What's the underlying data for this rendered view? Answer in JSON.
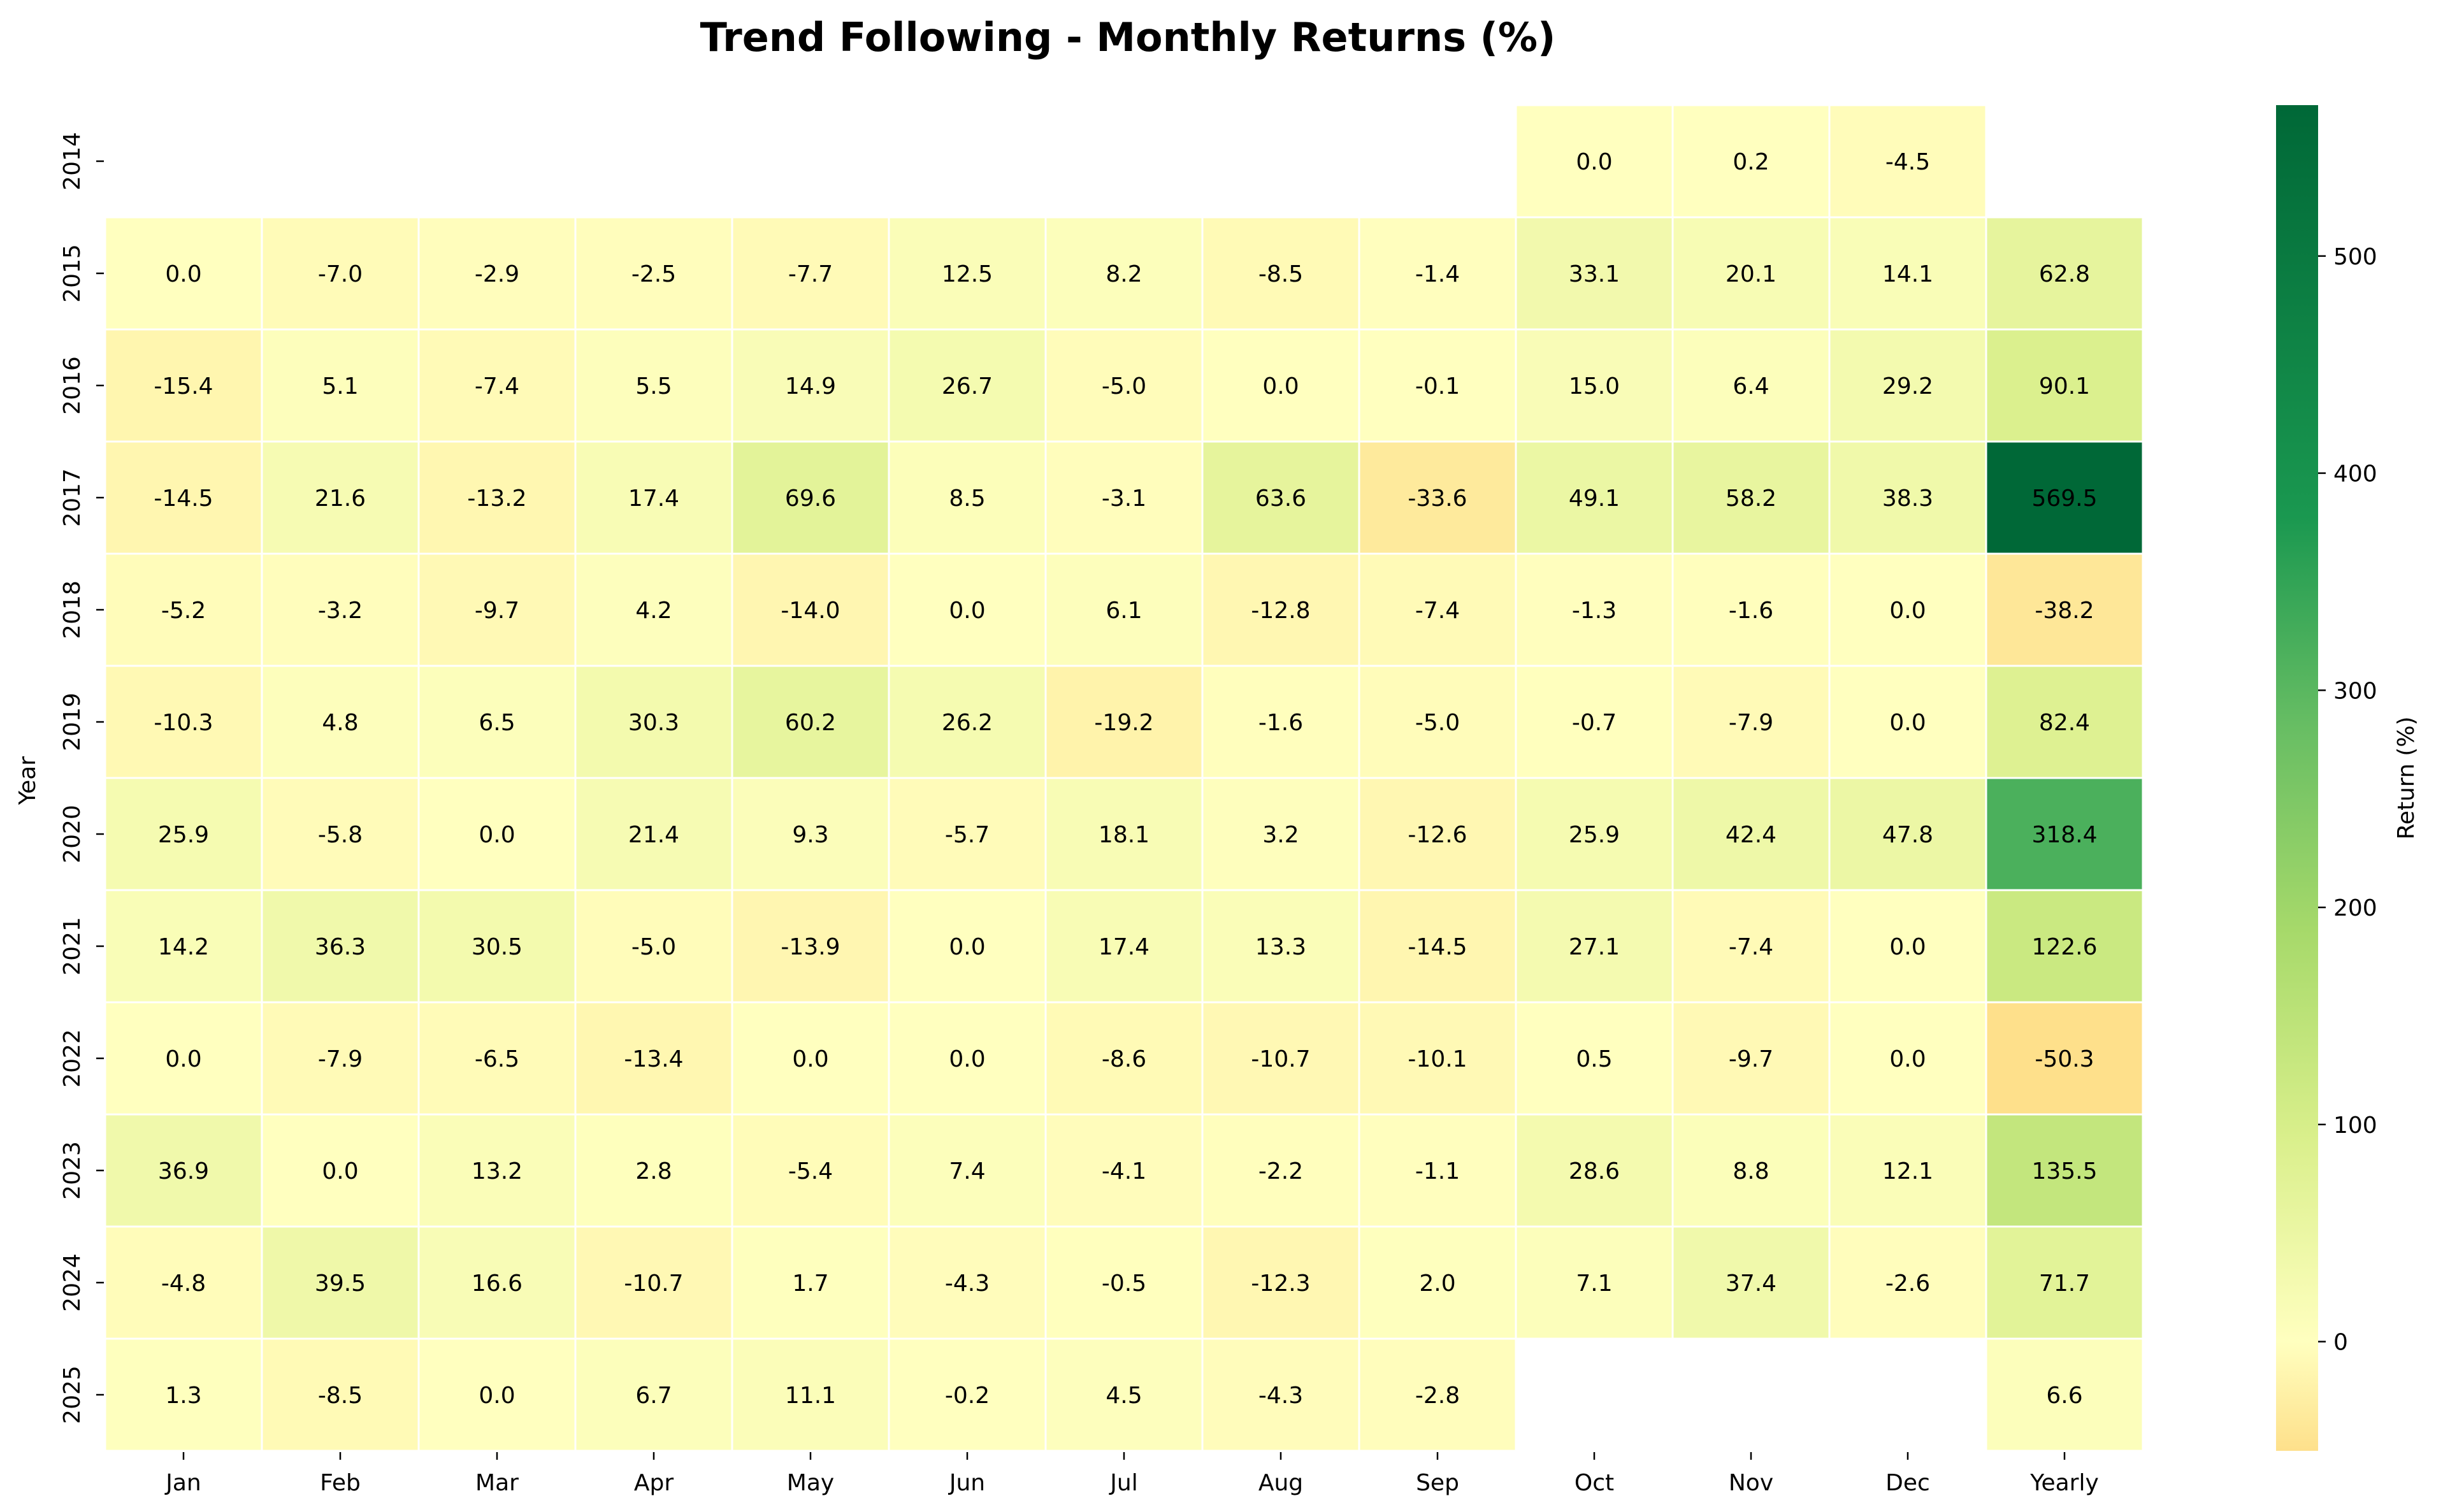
{
  "chart_data": {
    "type": "heatmap",
    "title": "Trend Following - Monthly Returns (%)",
    "xlabel": "",
    "ylabel": "Year",
    "x_categories": [
      "Jan",
      "Feb",
      "Mar",
      "Apr",
      "May",
      "Jun",
      "Jul",
      "Aug",
      "Sep",
      "Oct",
      "Nov",
      "Dec",
      "Yearly"
    ],
    "y_categories": [
      "2014",
      "2015",
      "2016",
      "2017",
      "2018",
      "2019",
      "2020",
      "2021",
      "2022",
      "2023",
      "2024",
      "2025"
    ],
    "values": [
      [
        null,
        null,
        null,
        null,
        null,
        null,
        null,
        null,
        null,
        0.0,
        0.2,
        -4.5,
        null
      ],
      [
        0.0,
        -7.0,
        -2.9,
        -2.5,
        -7.7,
        12.5,
        8.2,
        -8.5,
        -1.4,
        33.1,
        20.1,
        14.1,
        62.8
      ],
      [
        -15.4,
        5.1,
        -7.4,
        5.5,
        14.9,
        26.7,
        -5.0,
        0.0,
        -0.1,
        15.0,
        6.4,
        29.2,
        90.1
      ],
      [
        -14.5,
        21.6,
        -13.2,
        17.4,
        69.6,
        8.5,
        -3.1,
        63.6,
        -33.6,
        49.1,
        58.2,
        38.3,
        569.5
      ],
      [
        -5.2,
        -3.2,
        -9.7,
        4.2,
        -14.0,
        0.0,
        6.1,
        -12.8,
        -7.4,
        -1.3,
        -1.6,
        0.0,
        -38.2
      ],
      [
        -10.3,
        4.8,
        6.5,
        30.3,
        60.2,
        26.2,
        -19.2,
        -1.6,
        -5.0,
        -0.7,
        -7.9,
        0.0,
        82.4
      ],
      [
        25.9,
        -5.8,
        0.0,
        21.4,
        9.3,
        -5.7,
        18.1,
        3.2,
        -12.6,
        25.9,
        42.4,
        47.8,
        318.4
      ],
      [
        14.2,
        36.3,
        30.5,
        -5.0,
        -13.9,
        0.0,
        17.4,
        13.3,
        -14.5,
        27.1,
        -7.4,
        0.0,
        122.6
      ],
      [
        0.0,
        -7.9,
        -6.5,
        -13.4,
        0.0,
        0.0,
        -8.6,
        -10.7,
        -10.1,
        0.5,
        -9.7,
        0.0,
        -50.3
      ],
      [
        36.9,
        0.0,
        13.2,
        2.8,
        -5.4,
        7.4,
        -4.1,
        -2.2,
        -1.1,
        28.6,
        8.8,
        12.1,
        135.5
      ],
      [
        -4.8,
        39.5,
        16.6,
        -10.7,
        1.7,
        -4.3,
        -0.5,
        -12.3,
        2.0,
        7.1,
        37.4,
        -2.6,
        71.7
      ],
      [
        1.3,
        -8.5,
        0.0,
        6.7,
        11.1,
        -0.2,
        4.5,
        -4.3,
        -2.8,
        null,
        null,
        null,
        6.6
      ]
    ],
    "colorbar": {
      "label": "Return (%)",
      "min": -50.3,
      "max": 569.5,
      "ticks": [
        0,
        100,
        200,
        300,
        400,
        500
      ],
      "colormap": "RdYlGn-like (center at 0)",
      "stops": [
        "#fee08b",
        "#ffffbf",
        "#d9ef8b",
        "#a6d96a",
        "#66bd63",
        "#1a9850",
        "#006837"
      ]
    },
    "grid": false,
    "cell_border_color": "#ffffff"
  }
}
